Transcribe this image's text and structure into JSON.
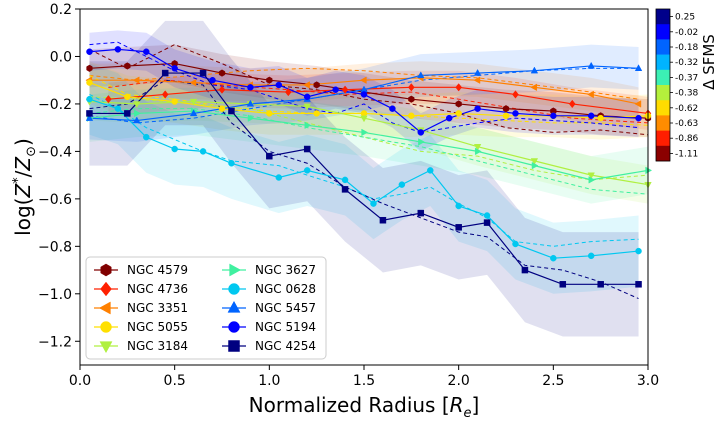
{
  "chart_data": {
    "type": "line",
    "xlabel": "Normalized Radius [R_e]",
    "xlabel_parts": {
      "main": "Normalized Radius [",
      "sub_var": "R",
      "subscript": "e",
      "close": "]"
    },
    "ylabel": "log(Z*/Z⊙)",
    "ylabel_parts": {
      "prefix": "log(",
      "var": "Z",
      "sup": "*",
      "slash": "/",
      "var2": "Z",
      "sub": "⊙",
      "close": ")"
    },
    "xlim": [
      0.0,
      3.0
    ],
    "ylim": [
      -1.3,
      0.2
    ],
    "xticks": [
      "0.0",
      "0.5",
      "1.0",
      "1.5",
      "2.0",
      "2.5",
      "3.0"
    ],
    "yticks": [
      "0.2",
      "0.0",
      "−0.2",
      "−0.4",
      "−0.6",
      "−0.8",
      "−1.0",
      "−1.2"
    ],
    "colorbar": {
      "title": "Δ SFMS",
      "labels": [
        "0.25",
        "-0.02",
        "-0.18",
        "-0.32",
        "-0.37",
        "-0.38",
        "-0.62",
        "-0.63",
        "-0.86",
        "-1.11"
      ],
      "colors": [
        "#00008b",
        "#0000ff",
        "#0064ff",
        "#00b4ff",
        "#3cf0b4",
        "#b4f03c",
        "#ffdc00",
        "#ff8c00",
        "#ff1e00",
        "#8b0000"
      ]
    },
    "legend_location": "lower-left",
    "series": [
      {
        "name": "NGC 4579",
        "color": "#800000",
        "marker": "hexagon",
        "x": [
          0.05,
          0.25,
          0.5,
          0.75,
          1.0,
          1.25,
          1.5,
          1.75,
          2.0,
          2.25,
          2.5,
          2.75,
          3.0
        ],
        "y": [
          -0.05,
          -0.04,
          -0.03,
          -0.07,
          -0.1,
          -0.12,
          -0.15,
          -0.18,
          -0.2,
          -0.22,
          -0.23,
          -0.25,
          -0.26
        ],
        "band": 0.08,
        "dash": [
          0.03,
          -0.05,
          0.05,
          -0.03,
          -0.12,
          -0.14,
          -0.18,
          -0.2,
          -0.24,
          -0.3,
          -0.32,
          -0.31,
          -0.33
        ]
      },
      {
        "name": "NGC 4736",
        "color": "#ff2000",
        "marker": "diamond",
        "x": [
          0.15,
          0.45,
          0.75,
          1.1,
          1.4,
          1.75,
          2.0,
          2.3,
          2.6,
          3.0
        ],
        "y": [
          -0.18,
          -0.16,
          -0.14,
          -0.15,
          -0.14,
          -0.13,
          -0.13,
          -0.16,
          -0.2,
          -0.24
        ],
        "band": 0.07,
        "dash": [
          -0.13,
          -0.1,
          -0.12,
          -0.14,
          -0.16,
          -0.15,
          -0.18,
          -0.22,
          -0.26,
          -0.28
        ]
      },
      {
        "name": "NGC 3351",
        "color": "#ff8000",
        "marker": "triangle-left",
        "x": [
          0.05,
          0.3,
          0.6,
          0.9,
          1.2,
          1.5,
          1.8,
          2.1,
          2.4,
          2.7,
          2.95
        ],
        "y": [
          -0.1,
          -0.1,
          -0.11,
          -0.12,
          -0.12,
          -0.1,
          -0.09,
          -0.1,
          -0.13,
          -0.16,
          -0.2
        ],
        "band": 0.07,
        "dash": [
          -0.08,
          -0.1,
          -0.08,
          -0.06,
          -0.05,
          -0.06,
          -0.08,
          -0.09,
          -0.12,
          -0.15,
          -0.18
        ]
      },
      {
        "name": "NGC 5055",
        "color": "#ffe000",
        "marker": "circle",
        "x": [
          0.05,
          0.25,
          0.5,
          0.75,
          1.0,
          1.25,
          1.5,
          1.75,
          2.0,
          2.25,
          2.5,
          2.75,
          3.0
        ],
        "y": [
          -0.11,
          -0.17,
          -0.19,
          -0.22,
          -0.24,
          -0.24,
          -0.24,
          -0.25,
          -0.24,
          -0.25,
          -0.25,
          -0.26,
          -0.25
        ],
        "band": 0.09,
        "dash": [
          -0.08,
          -0.16,
          -0.18,
          -0.21,
          -0.23,
          -0.24,
          -0.24,
          -0.25,
          -0.26,
          -0.27,
          -0.28,
          -0.28,
          -0.29
        ]
      },
      {
        "name": "NGC 3184",
        "color": "#b0f040",
        "marker": "triangle-down",
        "x": [
          0.05,
          0.3,
          0.6,
          0.9,
          1.2,
          1.5,
          1.8,
          2.1,
          2.4,
          2.7,
          3.0
        ],
        "y": [
          -0.19,
          -0.2,
          -0.19,
          -0.2,
          -0.21,
          -0.26,
          -0.31,
          -0.38,
          -0.44,
          -0.5,
          -0.54
        ],
        "band": 0.08,
        "dash": [
          -0.17,
          -0.18,
          -0.2,
          -0.22,
          -0.28,
          -0.34,
          -0.4,
          -0.42,
          -0.48,
          -0.52,
          -0.5
        ]
      },
      {
        "name": "NGC 3627",
        "color": "#40f0a0",
        "marker": "triangle-right",
        "x": [
          0.05,
          0.3,
          0.6,
          0.9,
          1.2,
          1.5,
          1.8,
          2.1,
          2.4,
          2.7,
          3.0
        ],
        "y": [
          -0.26,
          -0.24,
          -0.23,
          -0.26,
          -0.29,
          -0.32,
          -0.36,
          -0.4,
          -0.46,
          -0.52,
          -0.48
        ],
        "band": 0.1,
        "dash": [
          -0.24,
          -0.22,
          -0.22,
          -0.25,
          -0.3,
          -0.34,
          -0.38,
          -0.44,
          -0.5,
          -0.56,
          -0.58
        ]
      },
      {
        "name": "NGC 0628",
        "color": "#00c8f0",
        "marker": "circle",
        "x": [
          0.05,
          0.2,
          0.35,
          0.5,
          0.65,
          0.8,
          1.05,
          1.2,
          1.4,
          1.55,
          1.7,
          1.85,
          2.0,
          2.15,
          2.3,
          2.5,
          2.7,
          2.95
        ],
        "y": [
          -0.18,
          -0.22,
          -0.34,
          -0.39,
          -0.4,
          -0.45,
          -0.51,
          -0.48,
          -0.52,
          -0.62,
          -0.54,
          -0.48,
          -0.63,
          -0.67,
          -0.79,
          -0.85,
          -0.84,
          -0.82
        ],
        "band": 0.15,
        "dash": [
          -0.16,
          -0.22,
          -0.3,
          -0.35,
          -0.4,
          -0.44,
          -0.46,
          -0.5,
          -0.55,
          -0.6,
          -0.58,
          -0.55,
          -0.62,
          -0.68,
          -0.78,
          -0.8,
          -0.78,
          -0.77
        ]
      },
      {
        "name": "NGC 5457",
        "color": "#0064ff",
        "marker": "triangle-up",
        "x": [
          0.05,
          0.3,
          0.6,
          0.9,
          1.2,
          1.5,
          1.8,
          2.1,
          2.4,
          2.7,
          2.95
        ],
        "y": [
          -0.26,
          -0.27,
          -0.24,
          -0.2,
          -0.18,
          -0.14,
          -0.08,
          -0.07,
          -0.06,
          -0.04,
          -0.05
        ],
        "band": 0.09,
        "dash": [
          -0.25,
          -0.28,
          -0.26,
          -0.22,
          -0.18,
          -0.14,
          -0.1,
          -0.08,
          -0.06,
          -0.05,
          -0.05
        ]
      },
      {
        "name": "NGC 5194",
        "color": "#0000ff",
        "marker": "circle",
        "x": [
          0.05,
          0.2,
          0.35,
          0.5,
          0.7,
          0.9,
          1.05,
          1.2,
          1.35,
          1.5,
          1.65,
          1.8,
          1.95,
          2.1,
          2.3,
          2.5,
          2.7,
          2.95
        ],
        "y": [
          0.02,
          0.03,
          0.02,
          -0.05,
          -0.1,
          -0.13,
          -0.12,
          -0.17,
          -0.14,
          -0.16,
          -0.22,
          -0.32,
          -0.26,
          -0.22,
          -0.24,
          -0.25,
          -0.25,
          -0.26
        ],
        "band": 0.08,
        "dash": [
          0.05,
          0.06,
          0.0,
          -0.06,
          -0.12,
          -0.14,
          -0.18,
          -0.22,
          -0.24,
          -0.2,
          -0.28,
          -0.32,
          -0.3,
          -0.28,
          -0.26,
          -0.27,
          -0.28,
          -0.3
        ]
      },
      {
        "name": "NGC 4254",
        "color": "#000080",
        "marker": "square",
        "x": [
          0.05,
          0.25,
          0.45,
          0.65,
          0.8,
          1.0,
          1.2,
          1.4,
          1.6,
          1.8,
          2.0,
          2.15,
          2.35,
          2.55,
          2.75,
          2.95
        ],
        "y": [
          -0.24,
          -0.24,
          -0.07,
          -0.07,
          -0.23,
          -0.42,
          -0.39,
          -0.56,
          -0.69,
          -0.66,
          -0.72,
          -0.7,
          -0.9,
          -0.96,
          -0.96,
          -0.96
        ],
        "band": 0.22,
        "dash": [
          -0.22,
          -0.2,
          -0.1,
          -0.12,
          -0.28,
          -0.4,
          -0.45,
          -0.55,
          -0.62,
          -0.68,
          -0.74,
          -0.76,
          -0.88,
          -0.9,
          -0.95,
          -1.02
        ]
      }
    ]
  }
}
